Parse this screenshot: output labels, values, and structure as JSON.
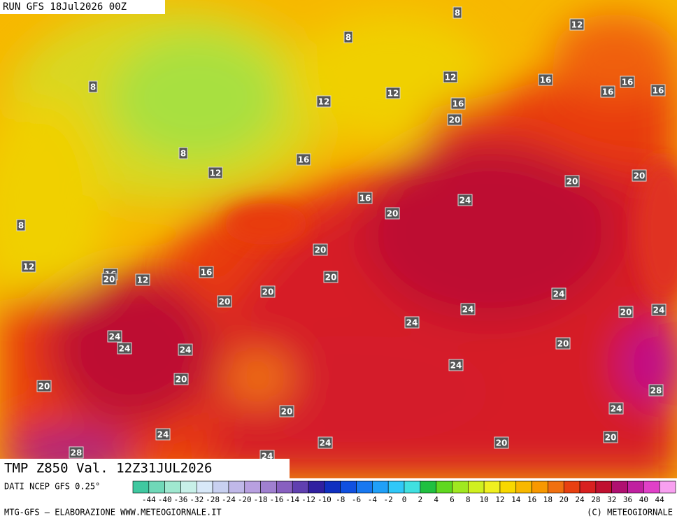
{
  "run_label": "RUN GFS 18Jul2026 00Z",
  "title": "TMP Z850 Val. 12Z31JUL2026",
  "contour_labels": [
    8,
    12,
    8,
    8,
    12,
    16,
    16,
    16,
    16,
    12,
    12,
    16,
    20,
    8,
    16,
    12,
    20,
    20,
    16,
    24,
    20,
    8,
    20,
    12,
    16,
    20,
    12,
    16,
    20,
    20,
    24,
    20,
    24,
    20,
    24,
    24,
    24,
    24,
    24,
    20,
    24,
    20,
    20,
    28,
    20,
    24,
    24,
    24,
    20,
    20,
    28,
    24
  ],
  "legend": {
    "labels": [
      -44,
      -40,
      -36,
      -32,
      -28,
      -24,
      -20,
      -18,
      -16,
      -14,
      -12,
      -10,
      -8,
      -6,
      -4,
      -2,
      0,
      2,
      4,
      6,
      8,
      10,
      12,
      14,
      16,
      18,
      20,
      24,
      28,
      32,
      36,
      40,
      44
    ],
    "colors": [
      "#40c8a0",
      "#70d8b8",
      "#a0e8d0",
      "#c8f0e8",
      "#d8e8f8",
      "#c8d0f0",
      "#c0b8e8",
      "#b8a0e0",
      "#a080d0",
      "#8860c0",
      "#6040b0",
      "#3020a0",
      "#1030c0",
      "#1050e0",
      "#1878f0",
      "#20a0f8",
      "#30c8f8",
      "#40e0e0",
      "#20c040",
      "#60d820",
      "#a0e820",
      "#d0f020",
      "#f0f020",
      "#f8d800",
      "#f8b800",
      "#f89800",
      "#f07010",
      "#e84010",
      "#d82020",
      "#c01030",
      "#b01070",
      "#c020a0",
      "#e040c8",
      "#f8a0f0"
    ]
  },
  "footer": {
    "source": "DATI NCEP GFS 0.25°",
    "credit": "MTG-GFS — ELABORAZIONE WWW.METEOGIORNALE.IT",
    "copyright": "(C) METEOGIORNALE"
  }
}
